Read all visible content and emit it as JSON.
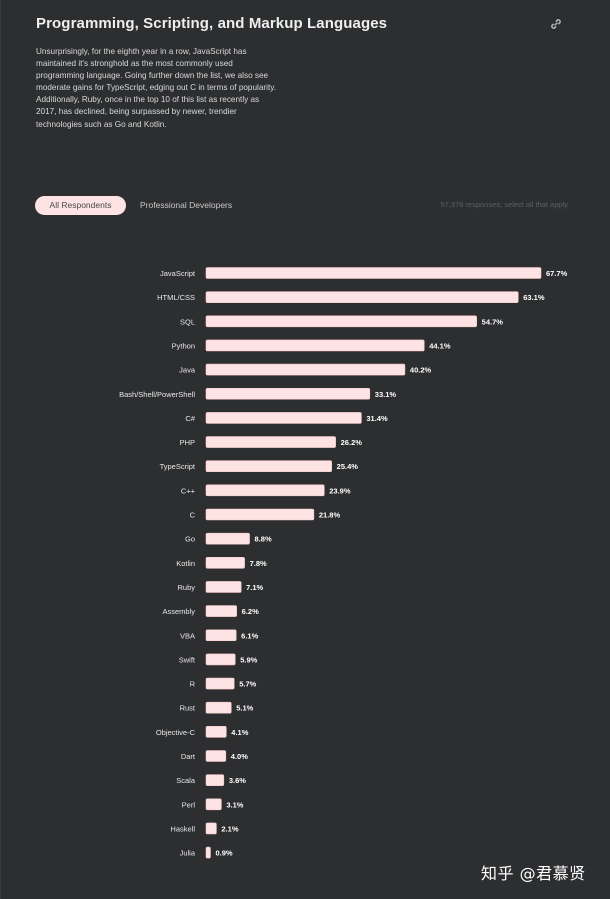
{
  "header": {
    "title": "Programming, Scripting, and Markup Languages",
    "description": "Unsurprisingly, for the eighth year in a row, JavaScript has maintained it's stronghold as the most commonly used programming language. Going further down the list, we also see moderate gains for TypeScript, edging out C in terms of popularity. Additionally, Ruby, once in the top 10 of this list as recently as 2017, has declined, being surpassed by newer, trendier technologies such as Go and Kotlin.",
    "link_icon": "link-icon"
  },
  "tabs": {
    "all_label": "All Respondents",
    "pro_label": "Professional Developers",
    "responses_note": "57,378 responses; select all that apply"
  },
  "colors": {
    "background": "#2d2e30",
    "bar_fill": "#fde3e3",
    "bar_stroke": "#f7c9c9",
    "text": "#e8e8e8"
  },
  "chart_data": {
    "type": "bar",
    "orientation": "horizontal",
    "categories": [
      "JavaScript",
      "HTML/CSS",
      "SQL",
      "Python",
      "Java",
      "Bash/Shell/PowerShell",
      "C#",
      "PHP",
      "TypeScript",
      "C++",
      "C",
      "Go",
      "Kotlin",
      "Ruby",
      "Assembly",
      "VBA",
      "Swift",
      "R",
      "Rust",
      "Objective-C",
      "Dart",
      "Scala",
      "Perl",
      "Haskell",
      "Julia"
    ],
    "values": [
      67.7,
      63.1,
      54.7,
      44.1,
      40.2,
      33.1,
      31.4,
      26.2,
      25.4,
      23.9,
      21.8,
      8.8,
      7.8,
      7.1,
      6.2,
      6.1,
      5.9,
      5.7,
      5.1,
      4.1,
      4.0,
      3.6,
      3.1,
      2.1,
      0.9
    ],
    "value_suffix": "%",
    "xlim": [
      0,
      67.7
    ]
  },
  "watermark": "知乎 @君慕贤"
}
